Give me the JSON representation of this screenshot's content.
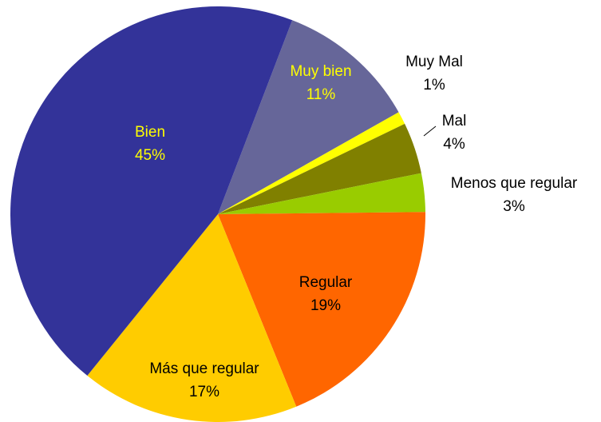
{
  "chart_data": {
    "type": "pie",
    "categories": [
      "Muy bien",
      "Muy Mal",
      "Mal",
      "Menos que regular",
      "Regular",
      "Más que regular",
      "Bien"
    ],
    "values": [
      11,
      1,
      4,
      3,
      19,
      17,
      45
    ],
    "value_labels": [
      "11%",
      "1%",
      "4%",
      "3%",
      "19%",
      "17%",
      "45%"
    ],
    "colors": [
      "#666699",
      "#ffff00",
      "#808000",
      "#99cc00",
      "#ff6600",
      "#ffcc00",
      "#333399"
    ]
  }
}
